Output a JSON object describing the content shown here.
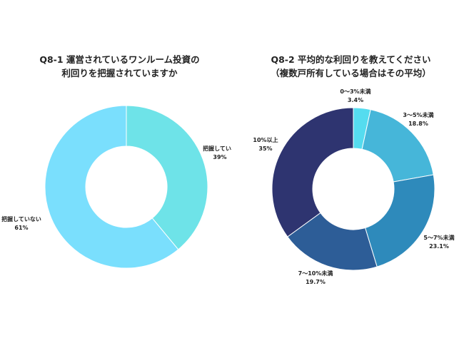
{
  "chart_data": [
    {
      "type": "pie",
      "title_lines": [
        "Q8-1 運営されているワンルーム投資の",
        "利回りを把握されていますか"
      ],
      "slices": [
        {
          "label": "把握している",
          "value": 39,
          "value_label": "39%",
          "color": "#6ee3e8"
        },
        {
          "label": "把握していない",
          "value": 61,
          "value_label": "61%",
          "color": "#7adffd"
        }
      ]
    },
    {
      "type": "pie",
      "title_lines": [
        "Q8-2 平均的な利回りを教えてください",
        "（複数戸所有している場合はその平均）"
      ],
      "slices": [
        {
          "label": "0～3%未満",
          "value": 3.4,
          "value_label": "3.4%",
          "color": "#55dcef"
        },
        {
          "label": "3～5%未満",
          "value": 18.8,
          "value_label": "18.8%",
          "color": "#46b6d9"
        },
        {
          "label": "5～7%未満",
          "value": 23.1,
          "value_label": "23.1%",
          "color": "#2e8abb"
        },
        {
          "label": "7～10%未満",
          "value": 19.7,
          "value_label": "19.7%",
          "color": "#2d5d97"
        },
        {
          "label": "10%以上",
          "value": 35,
          "value_label": "35%",
          "color": "#2e3470"
        }
      ]
    }
  ]
}
